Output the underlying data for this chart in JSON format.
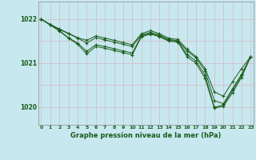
{
  "background_color": "#c8e8f0",
  "grid_color_v": "#d4b8c0",
  "grid_color_h": "#d4b8c0",
  "line_color": "#1a5c1a",
  "title": "Graphe pression niveau de la mer (hPa)",
  "hours": [
    0,
    1,
    2,
    3,
    4,
    5,
    6,
    7,
    8,
    9,
    10,
    11,
    12,
    13,
    14,
    15,
    16,
    17,
    18,
    19,
    20,
    21,
    22,
    23
  ],
  "ylim": [
    1019.6,
    1022.4
  ],
  "yticks": [
    1020,
    1021,
    1022
  ],
  "lines": [
    [
      1022.0,
      1021.88,
      1021.78,
      1021.68,
      1021.58,
      1021.52,
      1021.62,
      1021.57,
      1021.52,
      1021.47,
      1021.42,
      1021.67,
      1021.74,
      1021.67,
      1021.57,
      1021.54,
      1021.32,
      1021.15,
      1020.88,
      1020.35,
      1020.25,
      1020.58,
      1020.88,
      1021.15
    ],
    [
      1022.0,
      1021.88,
      1021.77,
      1021.67,
      1021.57,
      1021.46,
      1021.58,
      1021.53,
      1021.48,
      1021.43,
      1021.38,
      1021.64,
      1021.7,
      1021.64,
      1021.54,
      1021.51,
      1021.28,
      1021.12,
      1020.82,
      1020.15,
      1020.08,
      1020.42,
      1020.75,
      1021.15
    ],
    [
      1022.0,
      1021.87,
      1021.74,
      1021.58,
      1021.46,
      1021.27,
      1021.42,
      1021.38,
      1021.33,
      1021.28,
      1021.23,
      1021.62,
      1021.68,
      1021.62,
      1021.52,
      1021.5,
      1021.2,
      1021.05,
      1020.72,
      1020.0,
      1020.05,
      1020.38,
      1020.72,
      1021.15
    ],
    [
      1022.0,
      1021.87,
      1021.73,
      1021.57,
      1021.43,
      1021.21,
      1021.38,
      1021.34,
      1021.29,
      1021.24,
      1021.19,
      1021.6,
      1021.66,
      1021.6,
      1021.5,
      1021.48,
      1021.15,
      1021.0,
      1020.65,
      1019.98,
      1020.02,
      1020.33,
      1020.68,
      1021.15
    ]
  ]
}
